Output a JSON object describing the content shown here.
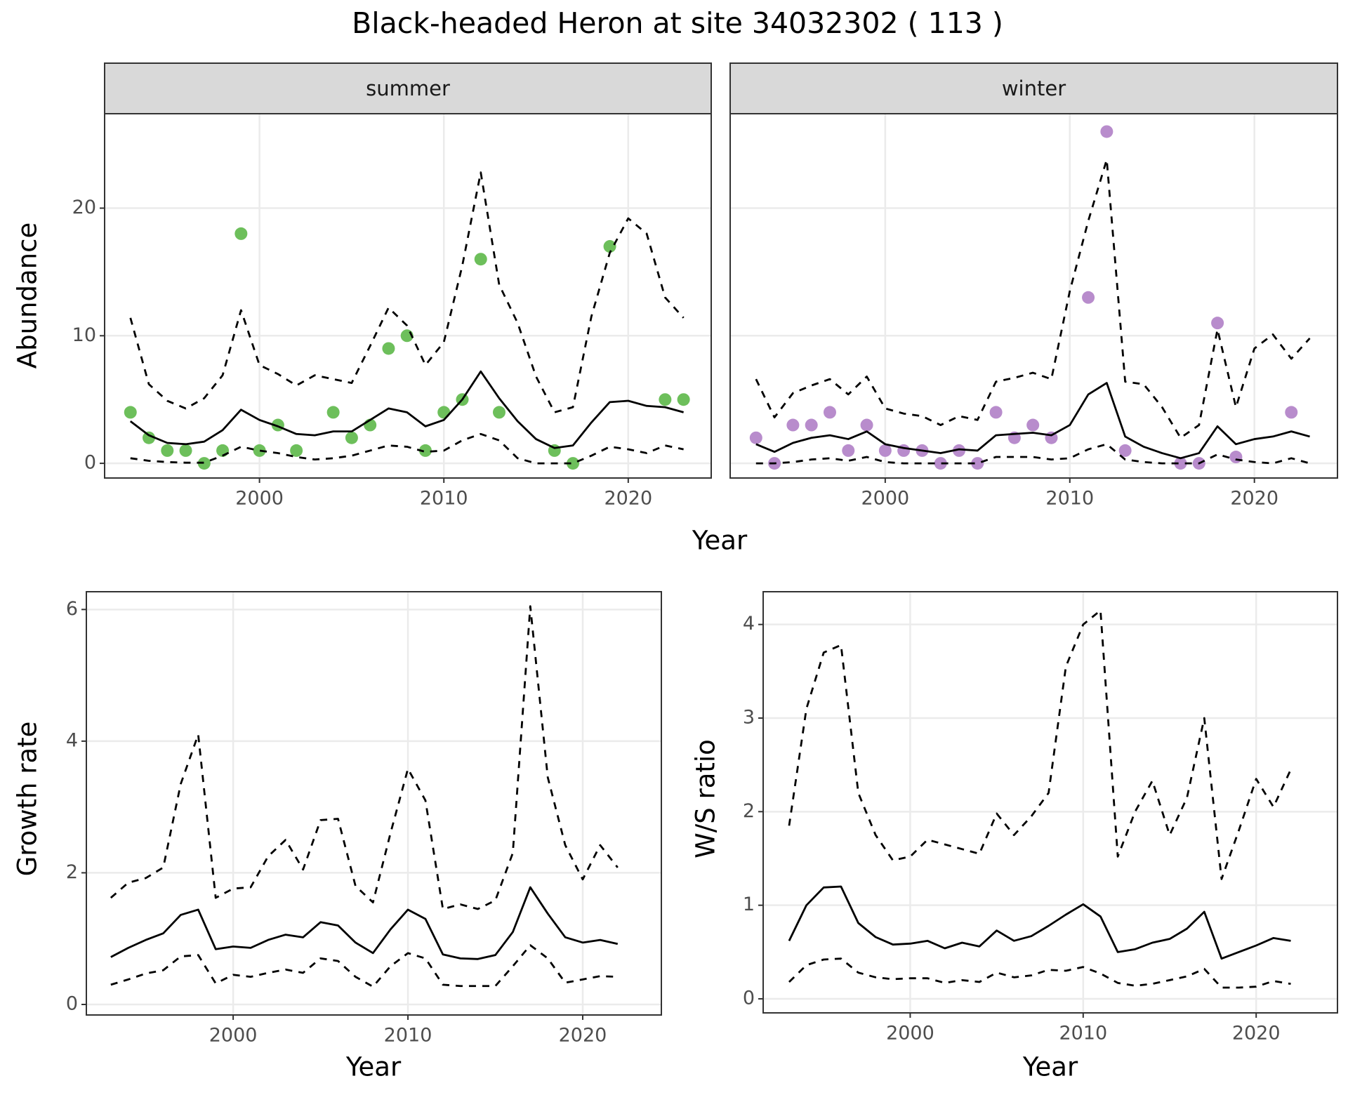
{
  "title": "Black-headed Heron at site 34032302 ( 113 )",
  "chart_data": [
    {
      "type": "line",
      "facet": "summer",
      "xlabel": "Year",
      "ylabel": "Abundance",
      "x": [
        1993,
        1994,
        1995,
        1996,
        1997,
        1998,
        1999,
        2000,
        2001,
        2002,
        2003,
        2004,
        2005,
        2006,
        2007,
        2008,
        2009,
        2010,
        2011,
        2012,
        2013,
        2014,
        2015,
        2016,
        2017,
        2018,
        2019,
        2020,
        2021,
        2022,
        2023
      ],
      "xlim": [
        1991.6,
        2024.5
      ],
      "xticks": [
        2000,
        2010,
        2020
      ],
      "ylim": [
        -1.15,
        27.4
      ],
      "yticks": [
        0,
        10,
        20
      ],
      "grid": true,
      "series": [
        {
          "type": "scatter",
          "color": "#6dbf5b",
          "values": [
            4,
            2,
            1,
            1,
            0,
            1,
            18,
            1,
            3,
            1,
            null,
            4,
            2,
            3,
            9,
            10,
            1,
            4,
            5,
            16,
            4,
            null,
            null,
            1,
            0,
            null,
            17,
            null,
            null,
            5,
            5
          ]
        },
        {
          "style": "solid",
          "color": "#000000",
          "values": [
            3.3,
            2.2,
            1.6,
            1.5,
            1.7,
            2.6,
            4.2,
            3.4,
            2.9,
            2.3,
            2.2,
            2.5,
            2.5,
            3.4,
            4.3,
            4.0,
            2.9,
            3.4,
            5.0,
            7.2,
            5.1,
            3.3,
            1.9,
            1.2,
            1.4,
            3.2,
            4.8,
            4.9,
            4.5,
            4.4,
            4.0
          ]
        },
        {
          "style": "dashed",
          "color": "#000000",
          "values": [
            11.4,
            6.2,
            4.9,
            4.3,
            5.1,
            6.9,
            12.0,
            7.7,
            7.0,
            6.1,
            6.9,
            6.6,
            6.3,
            9.2,
            12.2,
            10.8,
            7.7,
            9.5,
            15.5,
            22.8,
            14.0,
            11.0,
            6.8,
            4.0,
            4.4,
            11.5,
            16.5,
            19.2,
            18.0,
            13.0,
            11.4
          ]
        },
        {
          "style": "dashed",
          "color": "#000000",
          "values": [
            0.4,
            0.2,
            0.1,
            0.05,
            0.05,
            0.6,
            1.3,
            1.0,
            0.8,
            0.5,
            0.3,
            0.4,
            0.6,
            1.0,
            1.4,
            1.3,
            0.9,
            1.0,
            1.8,
            2.3,
            1.8,
            0.4,
            0,
            0,
            0,
            0.6,
            1.3,
            1.1,
            0.8,
            1.4,
            1.1
          ]
        }
      ]
    },
    {
      "type": "line",
      "facet": "winter",
      "x": [
        1993,
        1994,
        1995,
        1996,
        1997,
        1998,
        1999,
        2000,
        2001,
        2002,
        2003,
        2004,
        2005,
        2006,
        2007,
        2008,
        2009,
        2010,
        2011,
        2012,
        2013,
        2014,
        2015,
        2016,
        2017,
        2018,
        2019,
        2020,
        2021,
        2022,
        2023
      ],
      "xlim": [
        1991.6,
        2024.5
      ],
      "xticks": [
        2000,
        2010,
        2020
      ],
      "ylim": [
        -1.15,
        27.4
      ],
      "yticks": [
        0,
        10,
        20
      ],
      "grid": true,
      "series": [
        {
          "type": "scatter",
          "color": "#b88ccc",
          "values": [
            2,
            0,
            3,
            3,
            4,
            1,
            3,
            1,
            1,
            1,
            0,
            1,
            0,
            4,
            2,
            3,
            2,
            null,
            13,
            26,
            1,
            null,
            null,
            0,
            0,
            11,
            0.5,
            null,
            null,
            4,
            null
          ]
        },
        {
          "style": "solid",
          "color": "#000000",
          "values": [
            1.5,
            0.9,
            1.6,
            2.0,
            2.2,
            1.9,
            2.5,
            1.5,
            1.2,
            1.0,
            0.8,
            1.1,
            1.0,
            2.2,
            2.3,
            2.4,
            2.2,
            3.0,
            5.4,
            6.3,
            2.1,
            1.3,
            0.8,
            0.4,
            0.8,
            2.9,
            1.5,
            1.9,
            2.1,
            2.5,
            2.1
          ]
        },
        {
          "style": "dashed",
          "color": "#000000",
          "values": [
            6.6,
            3.6,
            5.5,
            6.1,
            6.6,
            5.4,
            6.8,
            4.3,
            3.9,
            3.7,
            3.0,
            3.7,
            3.4,
            6.4,
            6.7,
            7.1,
            6.6,
            13.5,
            19.0,
            23.8,
            6.4,
            6.2,
            4.4,
            2.0,
            3.0,
            10.5,
            4.4,
            9.0,
            10.1,
            8.2,
            9.8
          ]
        },
        {
          "style": "dashed",
          "color": "#000000",
          "values": [
            0,
            0,
            0.1,
            0.3,
            0.4,
            0.2,
            0.5,
            0.1,
            0,
            0,
            0,
            0,
            0,
            0.5,
            0.5,
            0.5,
            0.3,
            0.4,
            1.1,
            1.5,
            0.3,
            0.1,
            0,
            0,
            0,
            0.7,
            0.3,
            0.1,
            0,
            0.4,
            0
          ]
        }
      ]
    },
    {
      "type": "line",
      "xlabel": "Year",
      "ylabel": "Growth rate",
      "x": [
        1993,
        1994,
        1995,
        1996,
        1997,
        1998,
        1999,
        2000,
        2001,
        2002,
        2003,
        2004,
        2005,
        2006,
        2007,
        2008,
        2009,
        2010,
        2011,
        2012,
        2013,
        2014,
        2015,
        2016,
        2017,
        2018,
        2019,
        2020,
        2021,
        2022
      ],
      "xlim": [
        1991.6,
        2024.5
      ],
      "xticks": [
        2000,
        2010,
        2020
      ],
      "ylim": [
        -0.16,
        6.27
      ],
      "yticks": [
        0,
        2,
        4,
        6
      ],
      "grid": true,
      "series": [
        {
          "style": "solid",
          "color": "#000000",
          "values": [
            0.72,
            0.86,
            0.98,
            1.08,
            1.36,
            1.44,
            0.84,
            0.88,
            0.86,
            0.98,
            1.06,
            1.02,
            1.25,
            1.2,
            0.94,
            0.78,
            1.14,
            1.44,
            1.3,
            0.76,
            0.7,
            0.69,
            0.75,
            1.1,
            1.78,
            1.38,
            1.02,
            0.94,
            0.98,
            0.92
          ]
        },
        {
          "style": "dashed",
          "color": "#000000",
          "values": [
            1.62,
            1.85,
            1.92,
            2.08,
            3.35,
            4.1,
            1.62,
            1.76,
            1.78,
            2.25,
            2.5,
            2.05,
            2.8,
            2.82,
            1.8,
            1.55,
            2.6,
            3.58,
            3.1,
            1.45,
            1.52,
            1.45,
            1.58,
            2.3,
            6.05,
            3.45,
            2.42,
            1.9,
            2.42,
            2.08
          ]
        },
        {
          "style": "dashed",
          "color": "#000000",
          "values": [
            0.3,
            0.38,
            0.47,
            0.52,
            0.73,
            0.75,
            0.32,
            0.45,
            0.42,
            0.48,
            0.53,
            0.48,
            0.7,
            0.66,
            0.42,
            0.27,
            0.58,
            0.78,
            0.7,
            0.3,
            0.28,
            0.28,
            0.28,
            0.58,
            0.9,
            0.7,
            0.33,
            0.38,
            0.43,
            0.42
          ]
        }
      ]
    },
    {
      "type": "line",
      "xlabel": "Year",
      "ylabel": "W/S ratio",
      "x": [
        1993,
        1994,
        1995,
        1996,
        1997,
        1998,
        1999,
        2000,
        2001,
        2002,
        2003,
        2004,
        2005,
        2006,
        2007,
        2008,
        2009,
        2010,
        2011,
        2012,
        2013,
        2014,
        2015,
        2016,
        2017,
        2018,
        2019,
        2020,
        2021,
        2022
      ],
      "xlim": [
        1991.5,
        2024.7
      ],
      "xticks": [
        2000,
        2010,
        2020
      ],
      "ylim": [
        -0.15,
        4.35
      ],
      "yticks": [
        0,
        1,
        2,
        3,
        4
      ],
      "grid": true,
      "series": [
        {
          "style": "solid",
          "color": "#000000",
          "values": [
            0.62,
            1.0,
            1.19,
            1.2,
            0.81,
            0.66,
            0.58,
            0.59,
            0.62,
            0.54,
            0.6,
            0.56,
            0.73,
            0.62,
            0.67,
            0.78,
            0.9,
            1.01,
            0.88,
            0.5,
            0.53,
            0.6,
            0.64,
            0.75,
            0.93,
            0.43,
            0.5,
            0.57,
            0.65,
            0.62
          ]
        },
        {
          "style": "dashed",
          "color": "#000000",
          "values": [
            1.85,
            3.1,
            3.7,
            3.78,
            2.2,
            1.75,
            1.48,
            1.52,
            1.7,
            1.65,
            1.6,
            1.55,
            1.98,
            1.75,
            1.95,
            2.2,
            3.55,
            4.0,
            4.15,
            1.52,
            2.0,
            2.33,
            1.75,
            2.15,
            3.0,
            1.28,
            1.8,
            2.35,
            2.05,
            2.45
          ]
        },
        {
          "style": "dashed",
          "color": "#000000",
          "values": [
            0.18,
            0.36,
            0.42,
            0.43,
            0.28,
            0.23,
            0.21,
            0.22,
            0.22,
            0.17,
            0.2,
            0.18,
            0.28,
            0.23,
            0.25,
            0.31,
            0.3,
            0.34,
            0.27,
            0.17,
            0.14,
            0.16,
            0.2,
            0.24,
            0.32,
            0.12,
            0.12,
            0.13,
            0.19,
            0.16
          ]
        }
      ]
    }
  ]
}
